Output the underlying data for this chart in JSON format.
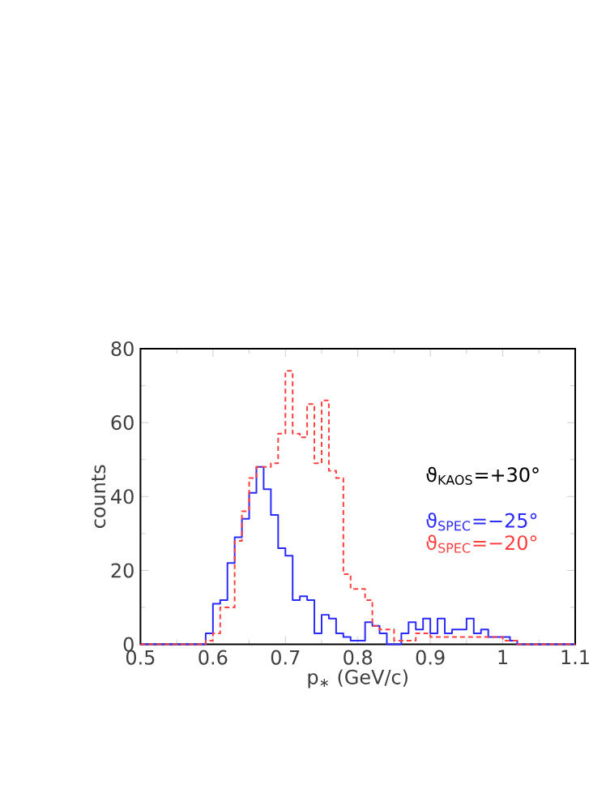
{
  "chart_data": {
    "type": "histogram",
    "xlabel": "p$_{∗}$  (GeV/c)",
    "ylabel": "counts",
    "bins": [
      0.5,
      0.51,
      0.52,
      0.53,
      0.54,
      0.55,
      0.56,
      0.57,
      0.58,
      0.59,
      0.6,
      0.61,
      0.62,
      0.63,
      0.64,
      0.65,
      0.66,
      0.67,
      0.68,
      0.69,
      0.7,
      0.71,
      0.72,
      0.73,
      0.74,
      0.75,
      0.76,
      0.77,
      0.78,
      0.79,
      0.8,
      0.81,
      0.82,
      0.83,
      0.84,
      0.85,
      0.86,
      0.87,
      0.88,
      0.89,
      0.9,
      0.91,
      0.92,
      0.93,
      0.94,
      0.95,
      0.96,
      0.97,
      0.98,
      0.99,
      1.0,
      1.01,
      1.02,
      1.03,
      1.04,
      1.05,
      1.06,
      1.07,
      1.08,
      1.09,
      1.1
    ],
    "series": [
      {
        "name": "ϑ$_{SPEC}$=−25°",
        "color": "#2a2aff",
        "line_style": "solid",
        "values": [
          0,
          0,
          0,
          0,
          0,
          0,
          0,
          0,
          0,
          3,
          11,
          12,
          22,
          29,
          34,
          41,
          48,
          42,
          35,
          26,
          24,
          12,
          13,
          12,
          3,
          8,
          7,
          3,
          2,
          1,
          1,
          6,
          5,
          3,
          0,
          0,
          3,
          6,
          4,
          7,
          3,
          7,
          3,
          4,
          4,
          7,
          3,
          4,
          2,
          2,
          2,
          1,
          0,
          0,
          0,
          0,
          0,
          0,
          0,
          0
        ]
      },
      {
        "name": "ϑ$_{SPEC}$=−20°",
        "color": "#ff4040",
        "line_style": "dashed",
        "values": [
          0,
          0,
          0,
          0,
          0,
          0,
          0,
          0,
          0,
          1,
          3,
          10,
          10,
          28,
          36,
          45,
          48,
          48,
          49,
          57,
          74,
          57,
          56,
          65,
          49,
          66,
          47,
          45,
          19,
          15,
          15,
          12,
          5,
          4,
          4,
          1,
          1,
          1,
          3,
          3,
          2,
          2,
          2,
          2,
          2,
          2,
          2,
          2,
          2,
          2,
          1,
          1,
          0,
          0,
          0,
          0,
          0,
          0,
          0,
          0
        ]
      }
    ],
    "xlim": [
      0.5,
      1.1
    ],
    "ylim": [
      0,
      80
    ],
    "xticks": [
      0.5,
      0.6,
      0.7,
      0.8,
      0.9,
      1,
      1.1
    ],
    "yticks": [
      0,
      20,
      40,
      60,
      80
    ],
    "annotations": [
      "ϑ$_{KAOS}$=+30°"
    ]
  }
}
